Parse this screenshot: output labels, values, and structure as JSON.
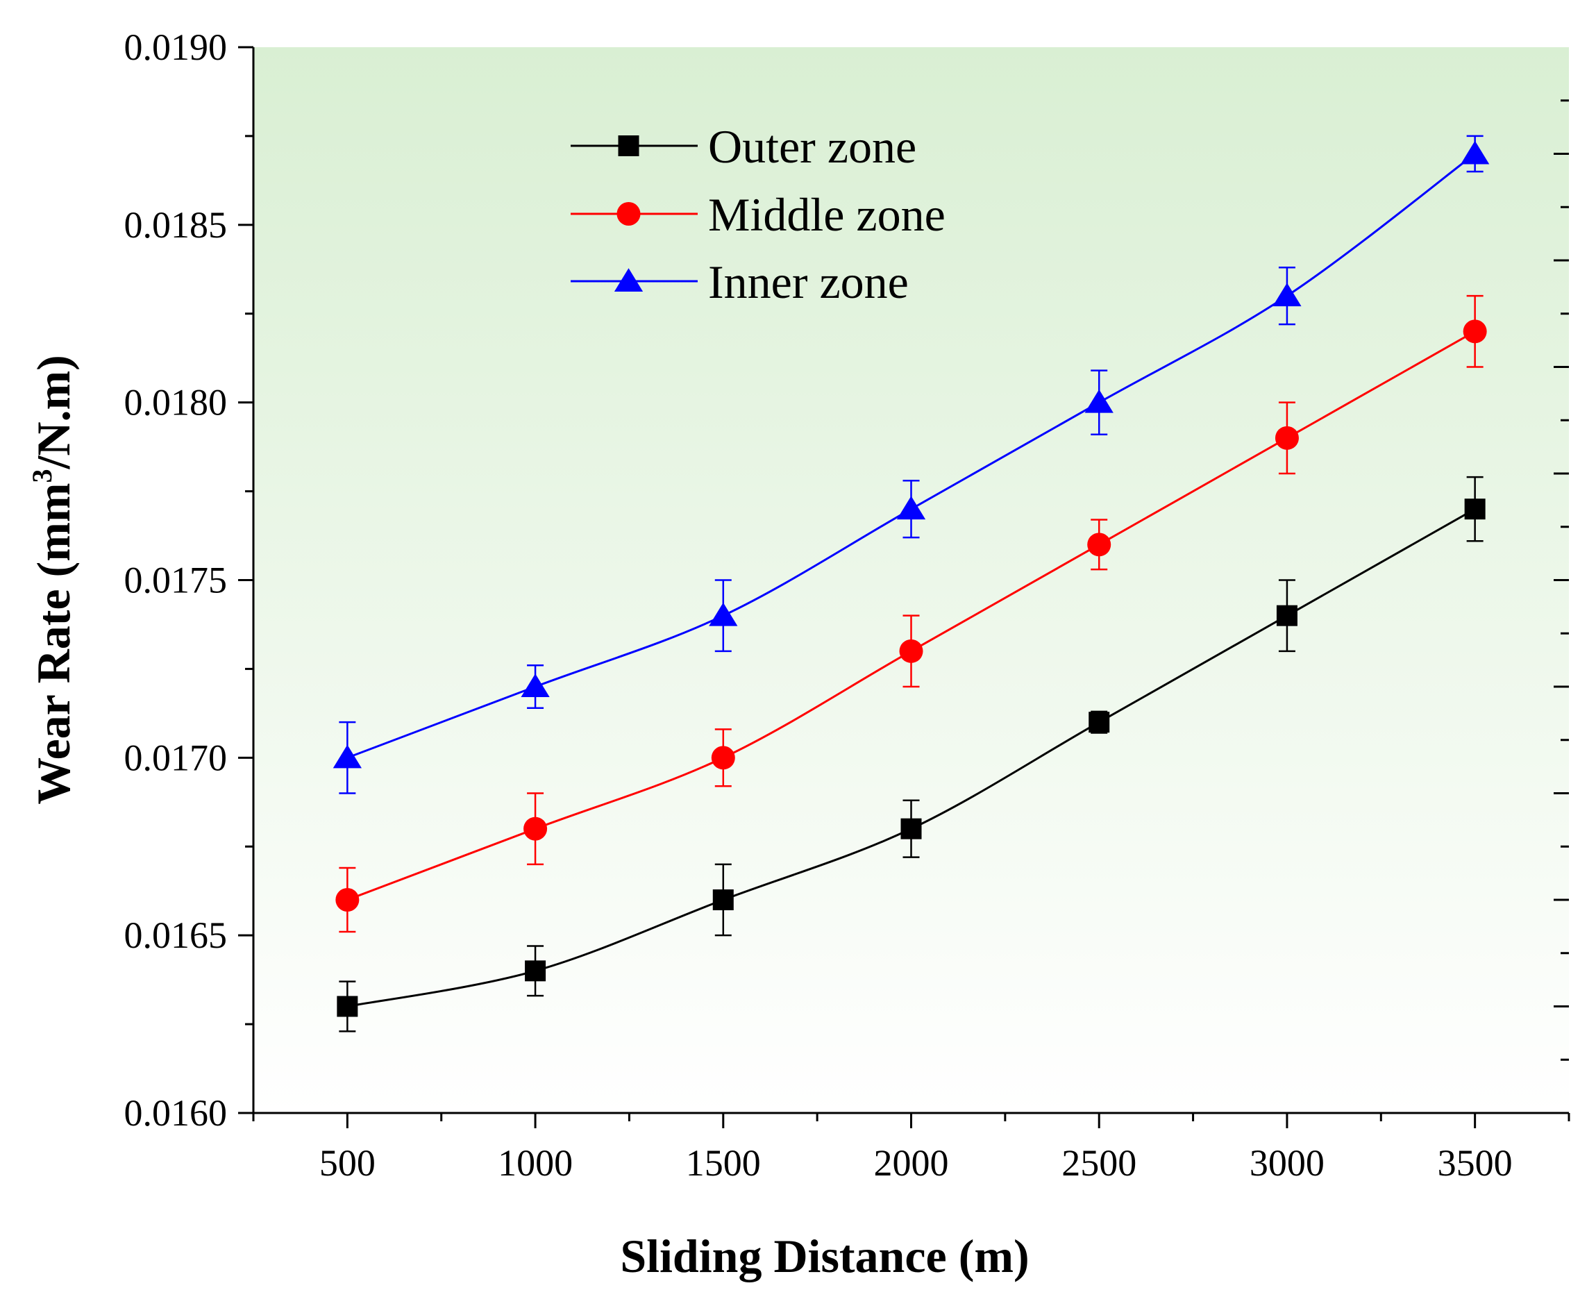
{
  "chart_data": {
    "type": "line",
    "title": "",
    "xlabel": "Sliding Distance (m)",
    "ylabel_main": "Wear Rate (mm",
    "ylabel_sup": "3",
    "ylabel_tail": "/N.m)",
    "x": [
      500,
      1000,
      1500,
      2000,
      2500,
      3000,
      3500
    ],
    "xlim": [
      250,
      3750
    ],
    "ylim": [
      0.016,
      0.019
    ],
    "x_ticks": [
      "500",
      "1000",
      "1500",
      "2000",
      "2500",
      "3000",
      "3500"
    ],
    "y_ticks": [
      "0.0160",
      "0.0165",
      "0.0170",
      "0.0175",
      "0.0180",
      "0.0185",
      "0.0190"
    ],
    "background_gradient": [
      "#d9efd3",
      "#ffffff"
    ],
    "legend_position": "top-center",
    "series": [
      {
        "name": "Outer zone",
        "color": "#000000",
        "marker": "square",
        "values": [
          0.0163,
          0.0164,
          0.0166,
          0.0168,
          0.0171,
          0.0174,
          0.0177
        ],
        "errors": [
          7e-05,
          7e-05,
          0.0001,
          8e-05,
          3e-05,
          0.0001,
          9e-05
        ]
      },
      {
        "name": "Middle zone",
        "color": "#ff0000",
        "marker": "circle",
        "values": [
          0.0166,
          0.0168,
          0.017,
          0.0173,
          0.0176,
          0.0179,
          0.0182
        ],
        "errors": [
          9e-05,
          0.0001,
          8e-05,
          0.0001,
          7e-05,
          0.0001,
          0.0001
        ]
      },
      {
        "name": "Inner zone",
        "color": "#0000ff",
        "marker": "triangle",
        "values": [
          0.017,
          0.0172,
          0.0174,
          0.0177,
          0.018,
          0.0183,
          0.0187
        ],
        "errors": [
          0.0001,
          6e-05,
          0.0001,
          8e-05,
          9e-05,
          8e-05,
          5e-05
        ]
      }
    ]
  }
}
